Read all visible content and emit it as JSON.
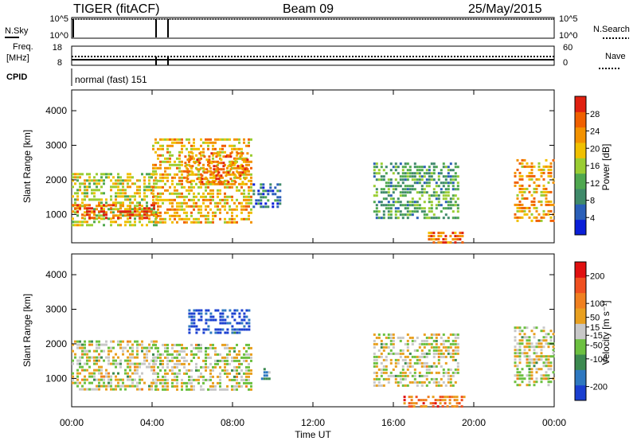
{
  "header": {
    "station": "TIGER (fitACF)",
    "beam": "Beam 09",
    "date": "25/May/2015"
  },
  "status_panels": {
    "nsky": {
      "label": "N.Sky",
      "ticks": [
        "10^5",
        "10^0"
      ]
    },
    "nsearch": {
      "label": "N.Search"
    },
    "freq": {
      "label_line1": "Freq.",
      "label_line2": "[MHz]",
      "ticks": [
        "18",
        "8"
      ]
    },
    "nave": {
      "label": "Nave",
      "ticks": [
        "60",
        "0"
      ]
    },
    "cpid": {
      "label": "CPID",
      "text": "normal (fast) 151"
    }
  },
  "x_axis": {
    "title": "Time UT",
    "ticks": [
      "00:00",
      "04:00",
      "08:00",
      "12:00",
      "16:00",
      "20:00",
      "00:00"
    ],
    "range_hours": [
      0,
      24
    ]
  },
  "colors": {
    "power": [
      "#0a1fd8",
      "#2a5fb8",
      "#3f8a6a",
      "#4fa84f",
      "#9acd32",
      "#f0c000",
      "#f39200",
      "#f06000",
      "#e02010"
    ],
    "velocity": [
      "#1a3fd0",
      "#2e78c0",
      "#3c8a50",
      "#6cc040",
      "#c8c8c8",
      "#e8a020",
      "#f08020",
      "#f05020",
      "#e01010"
    ]
  },
  "chart_data": [
    {
      "type": "heatmap",
      "title": "",
      "xlabel": "",
      "ylabel": "Slant Range [km]",
      "xlim": [
        0,
        24
      ],
      "ylim": [
        180,
        4600
      ],
      "yticks": [
        "1000",
        "2000",
        "3000",
        "4000"
      ],
      "colorbar": {
        "label": "Power [dB]",
        "ticks": [
          "4",
          "8",
          "12",
          "16",
          "20",
          "24",
          "28"
        ],
        "range": [
          0,
          32
        ]
      },
      "regions": [
        {
          "t0": 0.0,
          "t1": 4.2,
          "r0": 700,
          "r1": 2200,
          "level": 0.55
        },
        {
          "t0": 0.0,
          "t1": 4.2,
          "r0": 850,
          "r1": 1300,
          "level": 0.85
        },
        {
          "t0": 4.0,
          "t1": 8.9,
          "r0": 800,
          "r1": 3200,
          "level": 0.65
        },
        {
          "t0": 5.6,
          "t1": 8.8,
          "r0": 1900,
          "r1": 2800,
          "level": 0.8
        },
        {
          "t0": 9.0,
          "t1": 10.4,
          "r0": 1200,
          "r1": 1900,
          "level": 0.2
        },
        {
          "t0": 15.0,
          "t1": 19.2,
          "r0": 900,
          "r1": 2500,
          "level": 0.35
        },
        {
          "t0": 17.6,
          "t1": 19.4,
          "r0": 180,
          "r1": 500,
          "level": 0.8
        },
        {
          "t0": 22.0,
          "t1": 24.0,
          "r0": 800,
          "r1": 2600,
          "level": 0.7
        }
      ]
    },
    {
      "type": "heatmap",
      "title": "",
      "xlabel": "Time UT",
      "ylabel": "Slant Range [km]",
      "xlim": [
        0,
        24
      ],
      "ylim": [
        180,
        4600
      ],
      "yticks": [
        "1000",
        "2000",
        "3000",
        "4000"
      ],
      "colorbar": {
        "label": "Velocity [m s⁻¹]",
        "ticks": [
          "200",
          "100",
          "50",
          "15",
          "-15",
          "-50",
          "-100",
          "-200"
        ],
        "range": [
          -250,
          250
        ]
      },
      "regions": [
        {
          "t0": 0.0,
          "t1": 4.2,
          "r0": 700,
          "r1": 2100,
          "level": 0.5
        },
        {
          "t0": 4.0,
          "t1": 8.9,
          "r0": 700,
          "r1": 2000,
          "level": 0.5
        },
        {
          "t0": 5.8,
          "t1": 8.8,
          "r0": 2300,
          "r1": 3000,
          "level": 0.05
        },
        {
          "t0": 9.3,
          "t1": 9.8,
          "r0": 1000,
          "r1": 1300,
          "level": 0.35
        },
        {
          "t0": 15.0,
          "t1": 19.2,
          "r0": 800,
          "r1": 2300,
          "level": 0.5
        },
        {
          "t0": 16.5,
          "t1": 19.5,
          "r0": 200,
          "r1": 500,
          "level": 0.75
        },
        {
          "t0": 22.0,
          "t1": 24.0,
          "r0": 800,
          "r1": 2500,
          "level": 0.5
        }
      ]
    }
  ]
}
